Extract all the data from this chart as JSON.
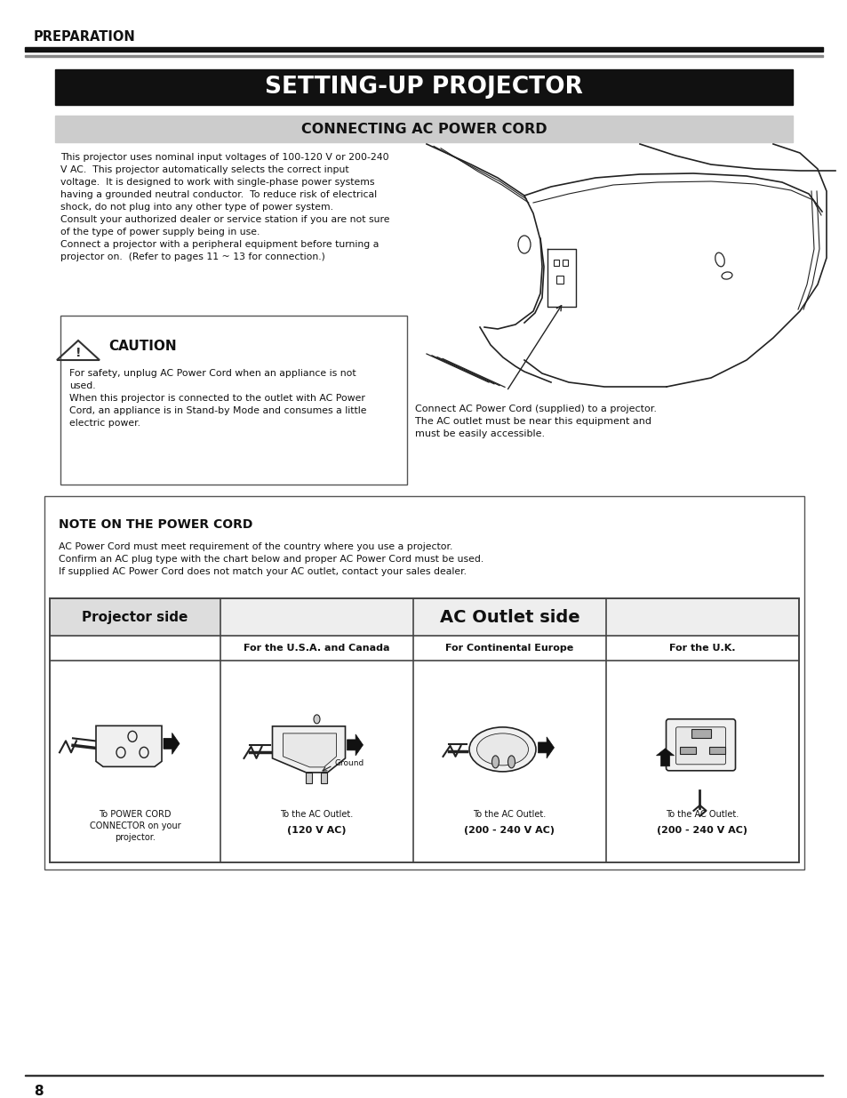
{
  "page_bg": "#ffffff",
  "header_text": "PREPARATION",
  "title_bg": "#111111",
  "title_text": "SETTING-UP PROJECTOR",
  "title_text_color": "#ffffff",
  "subtitle_bg": "#cccccc",
  "subtitle_text": "CONNECTING AC POWER CORD",
  "body_text_left": "This projector uses nominal input voltages of 100-120 V or 200-240\nV AC.  This projector automatically selects the correct input\nvoltage.  It is designed to work with single-phase power systems\nhaving a grounded neutral conductor.  To reduce risk of electrical\nshock, do not plug into any other type of power system.\nConsult your authorized dealer or service station if you are not sure\nof the type of power supply being in use.\nConnect a projector with a peripheral equipment before turning a\nprojector on.  (Refer to pages 11 ~ 13 for connection.)",
  "caution_label": "CAUTION",
  "caution_box_text": "For safety, unplug AC Power Cord when an appliance is not\nused.\nWhen this projector is connected to the outlet with AC Power\nCord, an appliance is in Stand-by Mode and consumes a little\nelectric power.",
  "image_caption": "Connect AC Power Cord (supplied) to a projector.\nThe AC outlet must be near this equipment and\nmust be easily accessible.",
  "note_title": "NOTE ON THE POWER CORD",
  "note_body": "AC Power Cord must meet requirement of the country where you use a projector.\nConfirm an AC plug type with the chart below and proper AC Power Cord must be used.\nIf supplied AC Power Cord does not match your AC outlet, contact your sales dealer.",
  "table_header_left": "Projector side",
  "table_header_right": "AC Outlet side",
  "col1_header": "For the U.S.A. and Canada",
  "col2_header": "For Continental Europe",
  "col3_header": "For the U.K.",
  "col1_caption1": "To the AC Outlet.",
  "col1_caption2": "(120 V AC)",
  "col2_caption1": "To the AC Outlet.",
  "col2_caption2": "(200 - 240 V AC)",
  "col3_caption1": "To the AC Outlet.",
  "col3_caption2": "(200 - 240 V AC)",
  "projector_side_caption": "To POWER CORD\nCONNECTOR on your\nprojector.",
  "page_number": "8",
  "ground_label": "Ground"
}
